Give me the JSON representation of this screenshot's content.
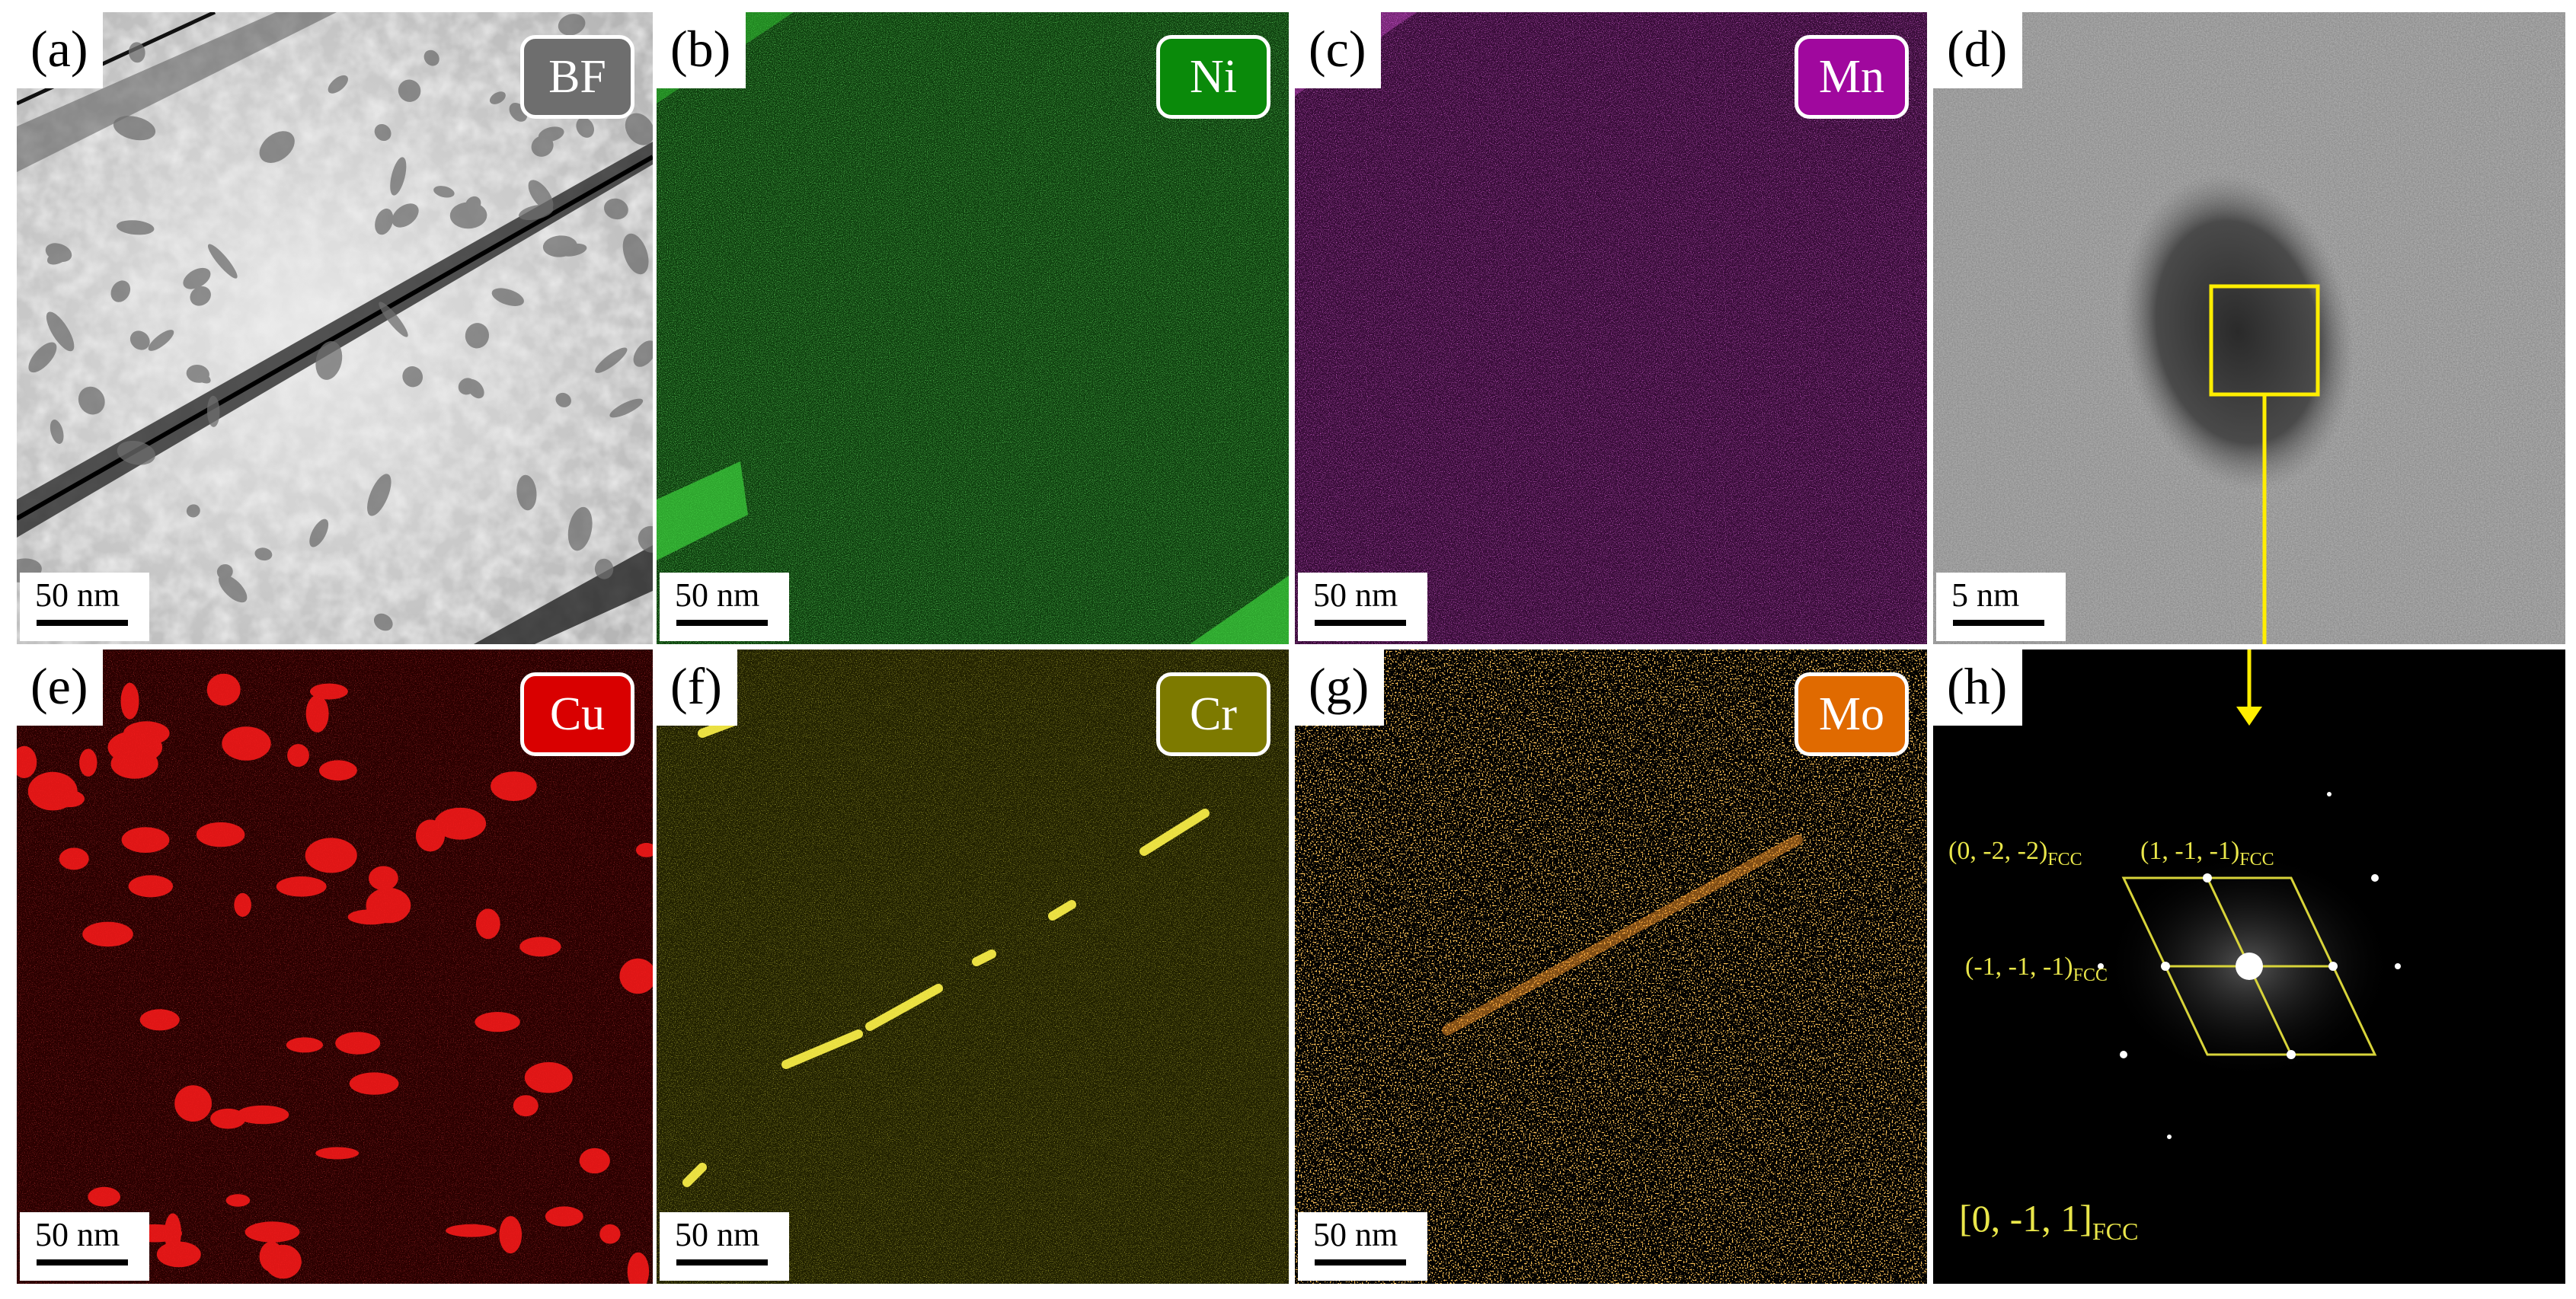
{
  "figure": {
    "panels": [
      {
        "id": "a",
        "letter": "(a)",
        "tag": "BF",
        "tag_color": "#6e6e6e",
        "scale": "50 nm",
        "kind": "bright-field"
      },
      {
        "id": "b",
        "letter": "(b)",
        "tag": "Ni",
        "tag_color": "#0a8a0a",
        "scale": "50 nm",
        "kind": "eds-map",
        "map_color": "#1f9a1f"
      },
      {
        "id": "c",
        "letter": "(c)",
        "tag": "Mn",
        "tag_color": "#a0089e",
        "scale": "50 nm",
        "kind": "eds-map",
        "map_color": "#c832c8"
      },
      {
        "id": "d",
        "letter": "(d)",
        "scale": "5 nm",
        "kind": "hrtem"
      },
      {
        "id": "e",
        "letter": "(e)",
        "tag": "Cu",
        "tag_color": "#d90000",
        "scale": "50 nm",
        "kind": "eds-map",
        "map_color": "#e01010"
      },
      {
        "id": "f",
        "letter": "(f)",
        "tag": "Cr",
        "tag_color": "#7d7a00",
        "scale": "50 nm",
        "kind": "eds-map",
        "map_color": "#c8c628"
      },
      {
        "id": "g",
        "letter": "(g)",
        "tag": "Mo",
        "tag_color": "#e06a00",
        "scale": "50 nm",
        "kind": "eds-map",
        "map_color": "#ff8c1a"
      },
      {
        "id": "h",
        "letter": "(h)",
        "kind": "fft"
      }
    ],
    "fft": {
      "spot_1": "(0, -2, -2)",
      "spot_2": "(1, -1, -1)",
      "spot_3": "(-1, -1, -1)",
      "subscript": "FCC",
      "zone_axis": "[0, -1, 1]",
      "annotation_color": "#e9e64a"
    }
  }
}
